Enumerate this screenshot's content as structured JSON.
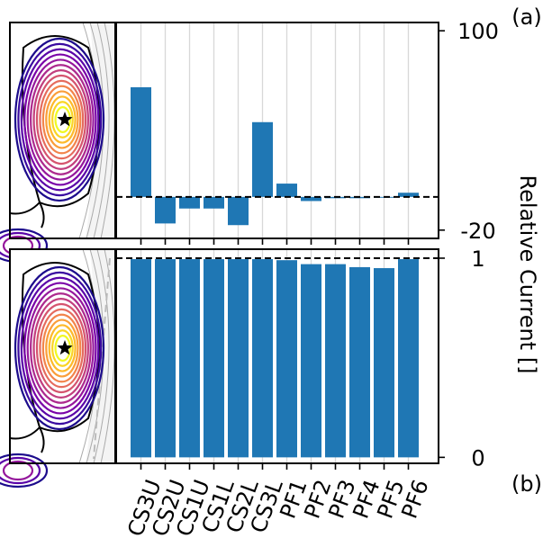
{
  "panel_labels": {
    "top": "(a)",
    "bottom": "(b)"
  },
  "ylabel": "Relative Current []",
  "colors": {
    "bar": "#1f77b4",
    "spine": "#000000",
    "grid": "#d8d8d8",
    "ref_line": "#000000",
    "eq_bg": "#f4f4f4"
  },
  "chart_data": [
    {
      "panel": "a",
      "type": "bar",
      "categories": [
        "CS3U",
        "CS2U",
        "CS1U",
        "CS1L",
        "CS2L",
        "CS3L",
        "PF1",
        "PF2",
        "PF3",
        "PF4",
        "PF5",
        "PF6"
      ],
      "values": [
        66,
        -16,
        -7,
        -7,
        -17,
        45,
        8,
        -2.5,
        -0.8,
        -0.8,
        -0.5,
        2.5
      ],
      "ylim": [
        -25,
        105
      ],
      "yticks": [
        {
          "value": 100,
          "label": "100"
        },
        {
          "value": -20,
          "label": "-20"
        }
      ],
      "reference_line": 0,
      "grid": "vertical",
      "show_xticklabels": false
    },
    {
      "panel": "b",
      "type": "bar",
      "categories": [
        "CS3U",
        "CS2U",
        "CS1U",
        "CS1L",
        "CS2L",
        "CS3L",
        "PF1",
        "PF2",
        "PF3",
        "PF4",
        "PF5",
        "PF6"
      ],
      "values": [
        0.995,
        0.995,
        0.995,
        0.995,
        0.995,
        0.995,
        0.99,
        0.97,
        0.97,
        0.955,
        0.95,
        0.995
      ],
      "ylim": [
        -0.03,
        1.045
      ],
      "yticks": [
        {
          "value": 1,
          "label": "1"
        },
        {
          "value": 0,
          "label": "0"
        }
      ],
      "reference_line": 1,
      "grid": "vertical",
      "show_xticklabels": true
    }
  ]
}
